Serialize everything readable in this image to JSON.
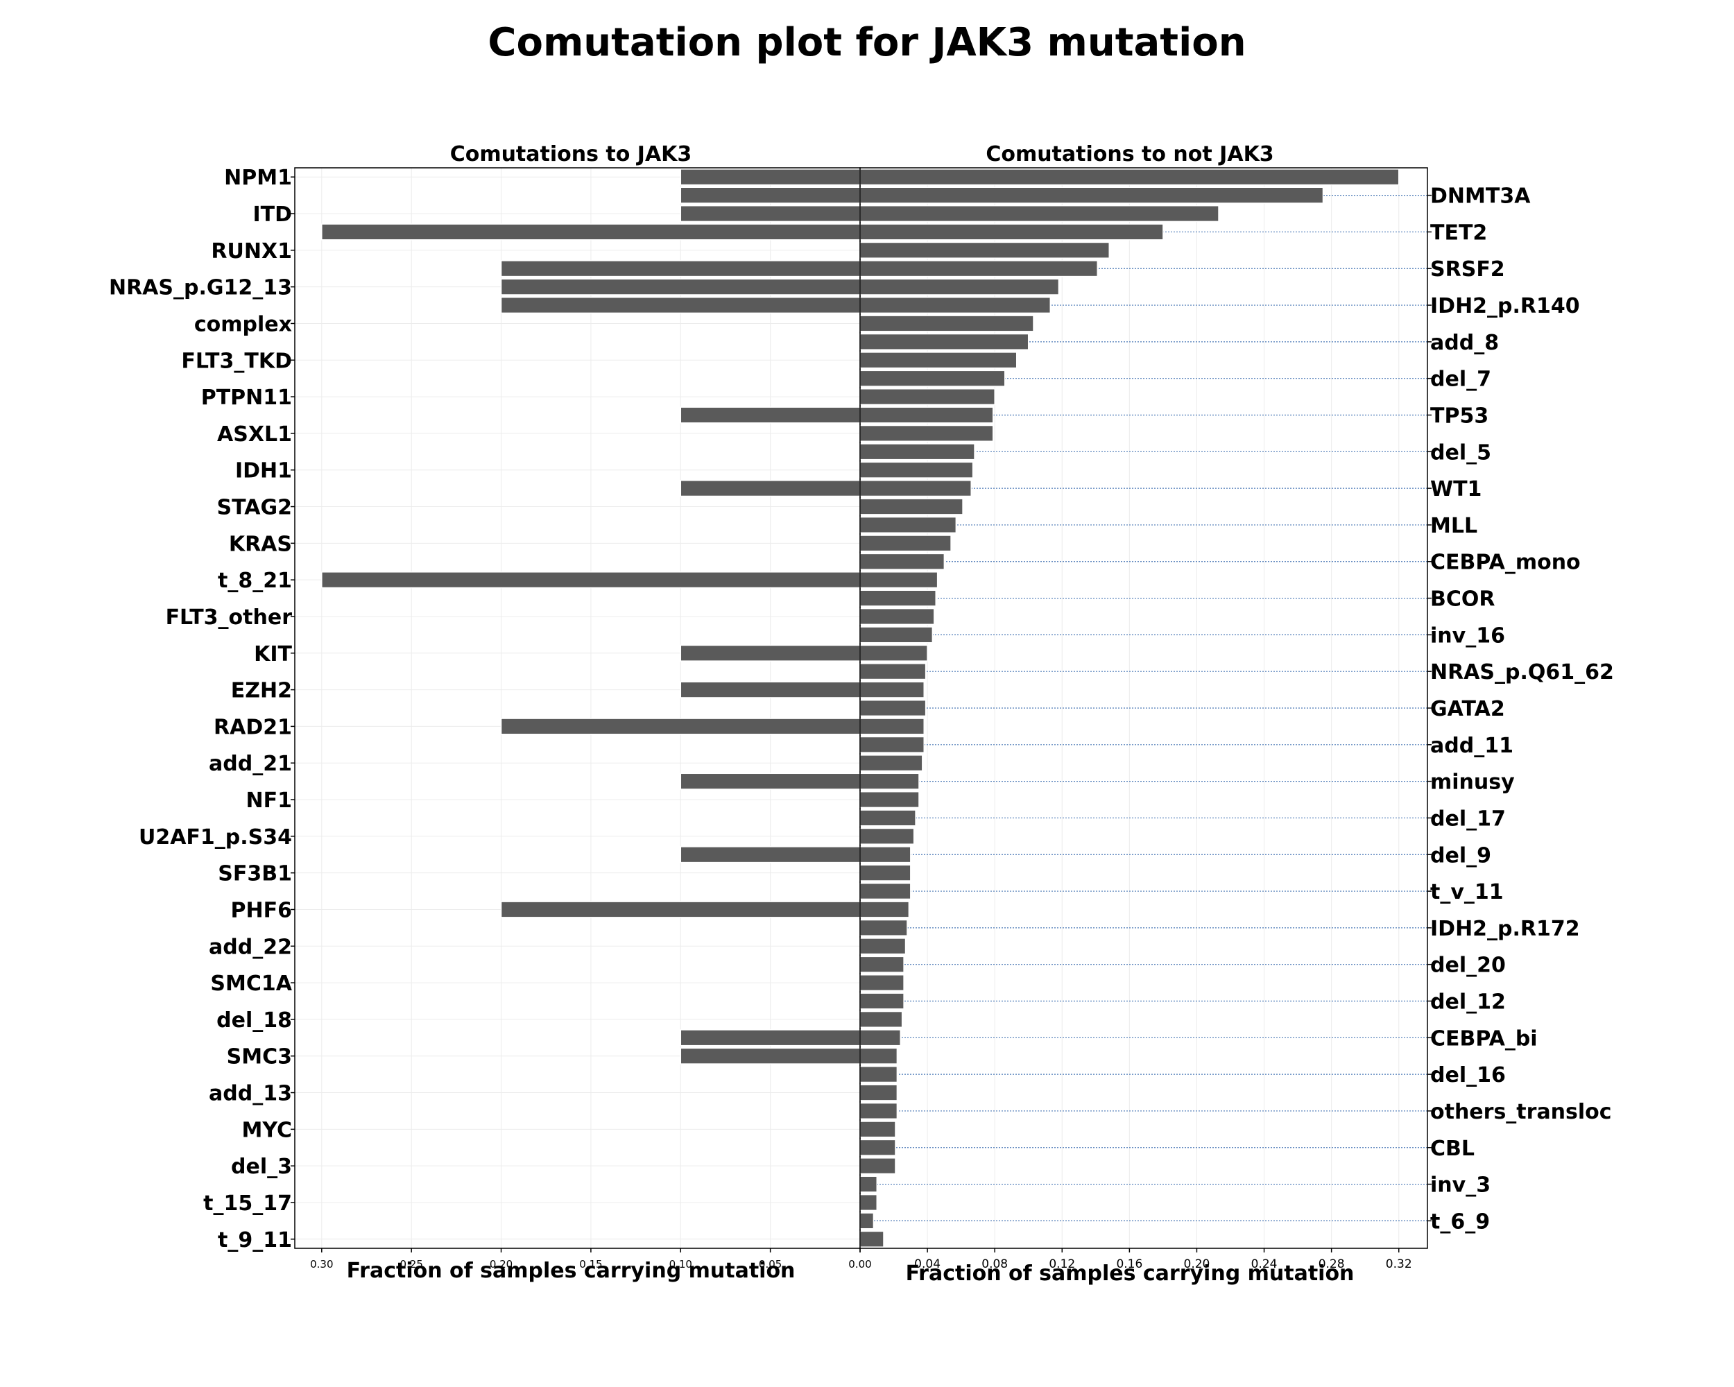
{
  "title": "Comutation plot for JAK3 mutation",
  "chart_data": [
    {
      "type": "bar",
      "orientation": "horizontal",
      "direction": "reversed",
      "title": "Comutations to JAK3",
      "xlabel": "Fraction of samples carrying mutation",
      "xlim": [
        0.315,
        0
      ],
      "xticks": [
        "0.30",
        "0.25",
        "0.20",
        "0.15",
        "0.10",
        "0.05",
        "0.00"
      ],
      "categories": [
        "NPM1",
        "DNMT3A",
        "ITD",
        "TET2",
        "RUNX1",
        "SRSF2",
        "NRAS_p.G12_13",
        "IDH2_p.R140",
        "complex",
        "add_8",
        "FLT3_TKD",
        "del_7",
        "PTPN11",
        "TP53",
        "ASXL1",
        "del_5",
        "IDH1",
        "WT1",
        "STAG2",
        "MLL",
        "KRAS",
        "CEBPA_mono",
        "t_8_21",
        "BCOR",
        "FLT3_other",
        "inv_16",
        "KIT",
        "NRAS_p.Q61_62",
        "EZH2",
        "GATA2",
        "RAD21",
        "add_11",
        "add_21",
        "minusy",
        "NF1",
        "del_17",
        "U2AF1_p.S34",
        "del_9",
        "SF3B1",
        "t_v_11",
        "PHF6",
        "IDH2_p.R172",
        "add_22",
        "del_20",
        "SMC1A",
        "del_12",
        "del_18",
        "CEBPA_bi",
        "SMC3",
        "del_16",
        "add_13",
        "others_transloc",
        "MYC",
        "CBL",
        "del_3",
        "inv_3",
        "t_15_17",
        "t_6_9",
        "t_9_11"
      ],
      "tick_labels_left": [
        "NPM1",
        "ITD",
        "RUNX1",
        "NRAS_p.G12_13",
        "complex",
        "FLT3_TKD",
        "PTPN11",
        "ASXL1",
        "IDH1",
        "STAG2",
        "KRAS",
        "t_8_21",
        "FLT3_other",
        "KIT",
        "EZH2",
        "RAD21",
        "add_21",
        "NF1",
        "U2AF1_p.S34",
        "SF3B1",
        "PHF6",
        "add_22",
        "SMC1A",
        "del_18",
        "SMC3",
        "add_13",
        "MYC",
        "del_3",
        "t_15_17",
        "t_9_11"
      ],
      "values": [
        0.1,
        0.1,
        0.1,
        0.3,
        0,
        0.2,
        0.2,
        0.2,
        0,
        0,
        0,
        0,
        0,
        0.1,
        0,
        0,
        0,
        0.1,
        0,
        0,
        0,
        0,
        0.3,
        0,
        0,
        0,
        0.1,
        0,
        0.1,
        0,
        0.2,
        0,
        0,
        0.1,
        0,
        0,
        0,
        0.1,
        0,
        0,
        0.2,
        0,
        0,
        0,
        0,
        0,
        0,
        0.1,
        0.1,
        0,
        0,
        0,
        0,
        0,
        0,
        0,
        0,
        0,
        0
      ],
      "bar_color": "#5a5a5a",
      "grid": true
    },
    {
      "type": "bar",
      "orientation": "horizontal",
      "title": "Comutations to not JAK3",
      "xlabel": "Fraction of samples carrying mutation",
      "xlim": [
        0,
        0.337
      ],
      "xticks": [
        "0.00",
        "0.04",
        "0.08",
        "0.12",
        "0.16",
        "0.20",
        "0.24",
        "0.28",
        "0.32"
      ],
      "tick_labels_right": [
        "DNMT3A",
        "TET2",
        "SRSF2",
        "IDH2_p.R140",
        "add_8",
        "del_7",
        "TP53",
        "del_5",
        "WT1",
        "MLL",
        "CEBPA_mono",
        "BCOR",
        "inv_16",
        "NRAS_p.Q61_62",
        "GATA2",
        "add_11",
        "minusy",
        "del_17",
        "del_9",
        "t_v_11",
        "IDH2_p.R172",
        "del_20",
        "del_12",
        "CEBPA_bi",
        "del_16",
        "others_transloc",
        "CBL",
        "inv_3",
        "t_6_9"
      ],
      "values": [
        0.32,
        0.275,
        0.213,
        0.18,
        0.148,
        0.141,
        0.118,
        0.113,
        0.103,
        0.1,
        0.093,
        0.086,
        0.08,
        0.079,
        0.079,
        0.068,
        0.067,
        0.066,
        0.061,
        0.057,
        0.054,
        0.05,
        0.046,
        0.045,
        0.044,
        0.043,
        0.04,
        0.039,
        0.038,
        0.039,
        0.038,
        0.038,
        0.037,
        0.035,
        0.035,
        0.033,
        0.032,
        0.03,
        0.03,
        0.03,
        0.029,
        0.028,
        0.027,
        0.026,
        0.026,
        0.026,
        0.025,
        0.024,
        0.022,
        0.022,
        0.022,
        0.022,
        0.021,
        0.021,
        0.021,
        0.01,
        0.01,
        0.008,
        0.014
      ],
      "bar_color": "#5a5a5a",
      "grid": true,
      "guide_line_color": "#4a78b5"
    }
  ]
}
